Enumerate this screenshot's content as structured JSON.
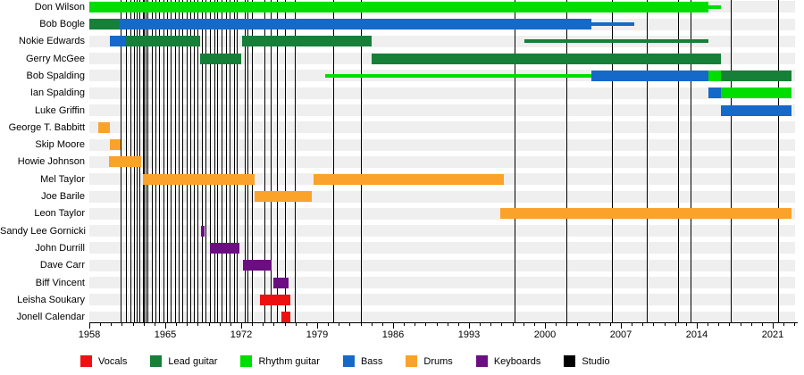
{
  "chart_data": {
    "type": "timeline",
    "description": "Band members timeline gantt chart with studio album release markers",
    "x_axis": {
      "start_year": 1958,
      "end_year": 2023,
      "major_tick_labels": [
        "1958",
        "1965",
        "1972",
        "1979",
        "1986",
        "1993",
        "2000",
        "2007",
        "2014",
        "2021"
      ],
      "major_tick_interval": 7,
      "minor_tick_interval": 1
    },
    "colors": {
      "vocals": "#ee1111",
      "lead": "#167f38",
      "rhythm": "#00dd00",
      "bass": "#1569c9",
      "drums": "#faa229",
      "keyboards": "#6c0e82",
      "studio": "#000000",
      "row_stripe": "#efefef"
    },
    "legend": [
      {
        "key": "vocals",
        "label": "Vocals"
      },
      {
        "key": "lead",
        "label": "Lead guitar"
      },
      {
        "key": "rhythm",
        "label": "Rhythm guitar"
      },
      {
        "key": "bass",
        "label": "Bass"
      },
      {
        "key": "drums",
        "label": "Drums"
      },
      {
        "key": "keyboards",
        "label": "Keyboards"
      },
      {
        "key": "studio",
        "label": "Studio"
      }
    ],
    "album_release_years": [
      1960.9,
      1961.4,
      1961.8,
      1962.1,
      1962.4,
      1962.6,
      1962.9,
      1963.05,
      1963.2,
      1963.35,
      1963.8,
      1964.1,
      1964.4,
      1964.8,
      1965.2,
      1965.5,
      1965.9,
      1966.2,
      1966.6,
      1967.0,
      1967.3,
      1967.6,
      1968.0,
      1968.4,
      1968.7,
      1969.1,
      1969.5,
      1969.8,
      1970.2,
      1970.6,
      1970.9,
      1971.3,
      1971.6,
      1972.3,
      1972.6,
      1973.0,
      1974.1,
      1974.7,
      1975.3,
      1976.0,
      1976.9,
      1980.5,
      1983.0,
      1997.2,
      2002.0,
      2006.2,
      2009.4,
      2012.3,
      2013.4,
      2017.1,
      2021.5
    ],
    "members": [
      {
        "name": "Don Wilson",
        "segments": [
          {
            "role": "rhythm",
            "start": 1958.0,
            "end": 2015.1,
            "style": "thick"
          },
          {
            "role": "rhythm",
            "start": 2015.1,
            "end": 2016.2,
            "style": "thin"
          }
        ]
      },
      {
        "name": "Bob Bogle",
        "segments": [
          {
            "role": "lead",
            "start": 1958.0,
            "end": 1960.7,
            "style": "thick"
          },
          {
            "role": "bass",
            "start": 1960.7,
            "end": 2004.3,
            "style": "thick"
          },
          {
            "role": "bass",
            "start": 2004.3,
            "end": 2008.2,
            "style": "thin"
          }
        ]
      },
      {
        "name": "Nokie Edwards",
        "segments": [
          {
            "role": "bass",
            "start": 1959.9,
            "end": 1961.3,
            "style": "thick"
          },
          {
            "role": "lead",
            "start": 1961.3,
            "end": 1968.2,
            "style": "thick"
          },
          {
            "role": "lead",
            "start": 1972.1,
            "end": 1984.0,
            "style": "thick"
          },
          {
            "role": "lead",
            "start": 1998.1,
            "end": 2015.1,
            "style": "thin"
          }
        ]
      },
      {
        "name": "Gerry McGee",
        "segments": [
          {
            "role": "lead",
            "start": 1968.2,
            "end": 1972.0,
            "style": "thick"
          },
          {
            "role": "lead",
            "start": 1984.0,
            "end": 2016.2,
            "style": "thick"
          }
        ]
      },
      {
        "name": "Bob Spalding",
        "segments": [
          {
            "role": "rhythm",
            "start": 1979.7,
            "end": 2004.3,
            "style": "thin"
          },
          {
            "role": "bass",
            "start": 2004.3,
            "end": 2015.1,
            "style": "thick"
          },
          {
            "role": "rhythm",
            "start": 2015.1,
            "end": 2016.2,
            "style": "thick"
          },
          {
            "role": "lead",
            "start": 2016.2,
            "end": 2022.7,
            "style": "thick"
          }
        ]
      },
      {
        "name": "Ian Spalding",
        "segments": [
          {
            "role": "bass",
            "start": 2015.1,
            "end": 2016.2,
            "style": "thick"
          },
          {
            "role": "rhythm",
            "start": 2016.2,
            "end": 2022.7,
            "style": "thick"
          }
        ]
      },
      {
        "name": "Luke Griffin",
        "segments": [
          {
            "role": "bass",
            "start": 2016.2,
            "end": 2022.7,
            "style": "thick"
          }
        ]
      },
      {
        "name": "George T. Babbitt",
        "segments": [
          {
            "role": "drums",
            "start": 1958.8,
            "end": 1959.9,
            "style": "thick"
          }
        ]
      },
      {
        "name": "Skip Moore",
        "segments": [
          {
            "role": "drums",
            "start": 1959.9,
            "end": 1960.9,
            "style": "thick"
          }
        ]
      },
      {
        "name": "Howie Johnson",
        "segments": [
          {
            "role": "drums",
            "start": 1959.8,
            "end": 1962.8,
            "style": "thick"
          }
        ]
      },
      {
        "name": "Mel Taylor",
        "segments": [
          {
            "role": "drums",
            "start": 1962.9,
            "end": 1973.2,
            "style": "thick"
          },
          {
            "role": "drums",
            "start": 1978.7,
            "end": 1996.2,
            "style": "thick"
          }
        ]
      },
      {
        "name": "Joe Barile",
        "segments": [
          {
            "role": "drums",
            "start": 1973.2,
            "end": 1978.5,
            "style": "thick"
          }
        ]
      },
      {
        "name": "Leon Taylor",
        "segments": [
          {
            "role": "drums",
            "start": 1995.9,
            "end": 2022.7,
            "style": "thick"
          }
        ]
      },
      {
        "name": "Sandy Lee Gornicki",
        "segments": [
          {
            "role": "keyboards",
            "start": 1968.3,
            "end": 1968.6,
            "style": "thick"
          }
        ]
      },
      {
        "name": "John Durrill",
        "segments": [
          {
            "role": "keyboards",
            "start": 1969.1,
            "end": 1971.8,
            "style": "thick"
          }
        ]
      },
      {
        "name": "Dave Carr",
        "segments": [
          {
            "role": "keyboards",
            "start": 1972.2,
            "end": 1974.8,
            "style": "thick"
          }
        ]
      },
      {
        "name": "Biff Vincent",
        "segments": [
          {
            "role": "keyboards",
            "start": 1975.0,
            "end": 1976.4,
            "style": "thick"
          }
        ]
      },
      {
        "name": "Leisha Soukary",
        "segments": [
          {
            "role": "vocals",
            "start": 1973.7,
            "end": 1976.5,
            "style": "thick"
          }
        ]
      },
      {
        "name": "Jonell Calendar",
        "segments": [
          {
            "role": "vocals",
            "start": 1975.7,
            "end": 1976.5,
            "style": "thick"
          }
        ]
      }
    ]
  }
}
